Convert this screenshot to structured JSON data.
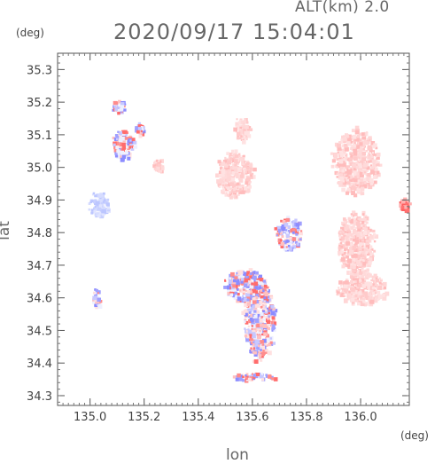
{
  "header": {
    "alt_label": "ALT(km) 2.0",
    "timestamp": "2020/09/17 15:04:01"
  },
  "axes": {
    "x_label": "lon",
    "y_label": "lat",
    "x_unit": "(deg)",
    "y_unit": "(deg)",
    "x_range": [
      134.88,
      136.18
    ],
    "y_range": [
      34.27,
      35.35
    ],
    "x_ticks": [
      "135.0",
      "135.2",
      "135.4",
      "135.6",
      "135.8",
      "136.0"
    ],
    "y_ticks": [
      "34.3",
      "34.4",
      "34.5",
      "34.6",
      "34.7",
      "34.8",
      "34.9",
      "35.0",
      "35.1",
      "35.2",
      "35.3"
    ]
  },
  "colors": {
    "frame": "#555555",
    "toward": "#8080ff",
    "away": "#ff8080",
    "weak_away": "#ffd0d0",
    "weak_toward": "#d0d8ff"
  },
  "echo_regions": [
    {
      "lon": 135.62,
      "lat": 34.53,
      "rlon": 0.06,
      "rlat": 0.12,
      "tone": "mixed"
    },
    {
      "lon": 135.57,
      "lat": 34.64,
      "rlon": 0.08,
      "rlat": 0.05,
      "tone": "mixed"
    },
    {
      "lon": 135.56,
      "lat": 35.12,
      "rlon": 0.03,
      "rlat": 0.04,
      "tone": "away_weak"
    },
    {
      "lon": 135.53,
      "lat": 34.98,
      "rlon": 0.07,
      "rlat": 0.07,
      "tone": "away_weak"
    },
    {
      "lon": 135.98,
      "lat": 35.02,
      "rlon": 0.09,
      "rlat": 0.1,
      "tone": "away_weak"
    },
    {
      "lon": 135.98,
      "lat": 34.77,
      "rlon": 0.07,
      "rlat": 0.1,
      "tone": "away_weak"
    },
    {
      "lon": 136.0,
      "lat": 34.63,
      "rlon": 0.09,
      "rlat": 0.05,
      "tone": "away_weak"
    },
    {
      "lon": 135.03,
      "lat": 34.89,
      "rlon": 0.04,
      "rlat": 0.04,
      "tone": "toward_weak"
    },
    {
      "lon": 135.12,
      "lat": 35.07,
      "rlon": 0.04,
      "rlat": 0.05,
      "tone": "mixed"
    },
    {
      "lon": 135.73,
      "lat": 34.8,
      "rlon": 0.05,
      "rlat": 0.05,
      "tone": "mixed"
    },
    {
      "lon": 135.18,
      "lat": 35.12,
      "rlon": 0.02,
      "rlat": 0.02,
      "tone": "mixed"
    },
    {
      "lon": 135.25,
      "lat": 35.01,
      "rlon": 0.02,
      "rlat": 0.02,
      "tone": "away_weak"
    },
    {
      "lon": 135.02,
      "lat": 34.6,
      "rlon": 0.015,
      "rlat": 0.03,
      "tone": "mixed"
    },
    {
      "lon": 136.16,
      "lat": 34.89,
      "rlon": 0.02,
      "rlat": 0.02,
      "tone": "away"
    },
    {
      "lon": 135.6,
      "lat": 34.36,
      "rlon": 0.08,
      "rlat": 0.012,
      "tone": "mixed"
    },
    {
      "lon": 135.1,
      "lat": 35.19,
      "rlon": 0.03,
      "rlat": 0.02,
      "tone": "mixed"
    }
  ]
}
